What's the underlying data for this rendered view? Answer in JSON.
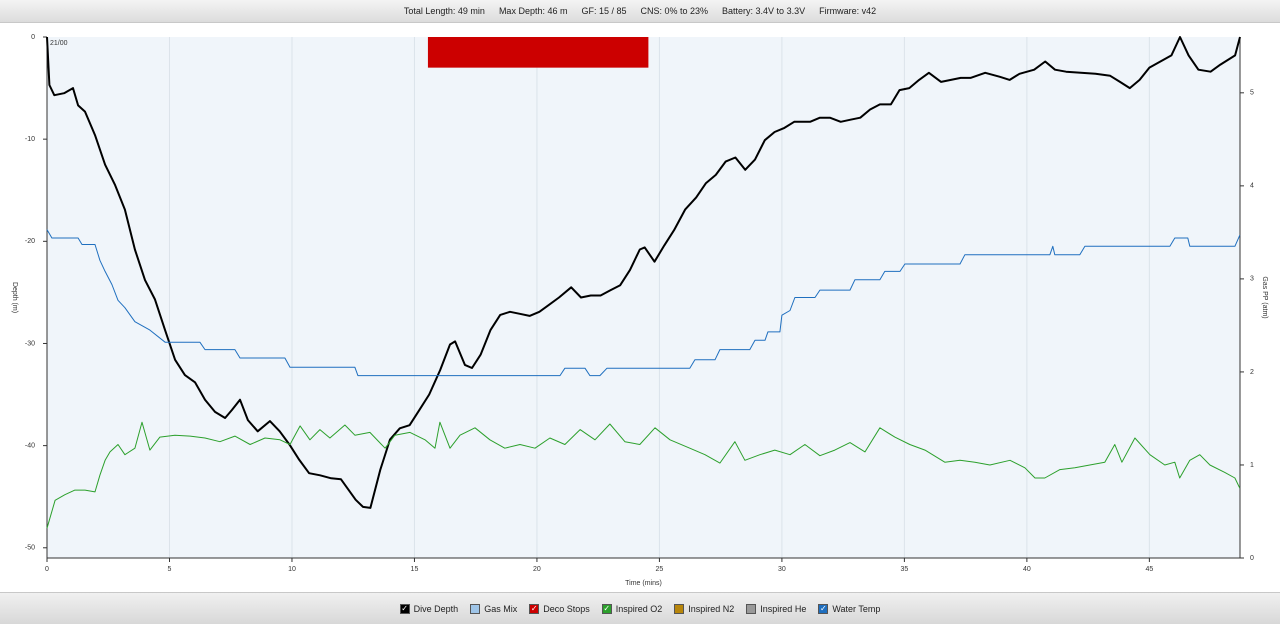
{
  "header": {
    "stats": [
      "Total Length: 49 min",
      "Max Depth: 46 m",
      "GF: 15 / 85",
      "CNS: 0% to 23%",
      "Battery: 3.4V to 3.3V",
      "Firmware: v42"
    ]
  },
  "chart_data": {
    "type": "line",
    "x_label": "Time (mins)",
    "y_label": "Depth (m)",
    "y2_label": "Gas PP (atm)",
    "corner_label": "21/00",
    "xlim": [
      0,
      48.7
    ],
    "xticks": [
      0,
      5,
      10,
      15,
      20,
      25,
      30,
      35,
      40,
      45
    ],
    "ylim": [
      -51,
      0
    ],
    "yticks": [
      0,
      -10,
      -20,
      -30,
      -40,
      -50
    ],
    "y2lim": [
      0,
      5.6
    ],
    "y2ticks": [
      0,
      1,
      2,
      3,
      4,
      5
    ],
    "grid": true,
    "legend": [
      {
        "name": "Dive Depth",
        "color": "#000000",
        "checked": true
      },
      {
        "name": "Gas Mix",
        "color": "#9fc5e8",
        "checked": false
      },
      {
        "name": "Deco Stops",
        "color": "#cc0000",
        "checked": true
      },
      {
        "name": "Inspired O2",
        "color": "#2ca02c",
        "checked": true
      },
      {
        "name": "Inspired N2",
        "color": "#b8860b",
        "checked": false
      },
      {
        "name": "Inspired He",
        "color": "#999999",
        "checked": false
      },
      {
        "name": "Water Temp",
        "color": "#1f6fbf",
        "checked": true
      }
    ],
    "deco_stops": [
      {
        "start": 15.55,
        "end": 24.55,
        "depth": -3,
        "legend": 2
      }
    ],
    "series": [
      {
        "legend": 0,
        "color": "#000000",
        "width": 2,
        "axis": "y",
        "x": [
          0,
          0.1,
          0.3,
          0.7,
          1.06,
          1.27,
          1.55,
          1.96,
          2.37,
          2.78,
          3.18,
          3.59,
          4.0,
          4.41,
          4.82,
          5.23,
          5.63,
          6.04,
          6.45,
          6.86,
          7.27,
          7.55,
          7.88,
          8.2,
          8.6,
          9.1,
          9.5,
          9.9,
          10.3,
          10.7,
          11.15,
          11.6,
          12.0,
          12.6,
          12.9,
          13.2,
          13.6,
          14.0,
          14.4,
          14.8,
          15.2,
          15.6,
          16.05,
          16.45,
          16.66,
          17.06,
          17.35,
          17.7,
          18.1,
          18.5,
          18.9,
          19.3,
          19.7,
          20.1,
          20.5,
          20.9,
          21.4,
          21.8,
          22.2,
          22.6,
          23.0,
          23.4,
          23.8,
          24.2,
          24.4,
          24.8,
          25.2,
          25.6,
          26.05,
          26.5,
          26.9,
          27.3,
          27.7,
          28.1,
          28.5,
          28.9,
          29.3,
          29.7,
          30.1,
          30.5,
          31.15,
          31.55,
          31.96,
          32.4,
          32.8,
          33.2,
          33.6,
          34.0,
          34.45,
          34.8,
          35.2,
          35.6,
          36.0,
          36.5,
          36.9,
          37.3,
          37.7,
          38.3,
          38.9,
          39.3,
          39.7,
          40.3,
          40.75,
          41.15,
          41.6,
          42.2,
          42.8,
          43.4,
          43.8,
          44.2,
          44.6,
          45.0,
          45.45,
          45.9,
          46.25,
          46.6,
          47.0,
          47.5,
          47.9,
          48.5,
          48.7
        ],
        "values": [
          0,
          -4.7,
          -5.7,
          -5.5,
          -5.0,
          -6.7,
          -7.3,
          -9.6,
          -12.5,
          -14.5,
          -16.9,
          -20.8,
          -23.8,
          -25.7,
          -28.7,
          -31.6,
          -33.1,
          -33.8,
          -35.5,
          -36.7,
          -37.3,
          -36.5,
          -35.5,
          -37.5,
          -38.6,
          -37.6,
          -38.6,
          -39.9,
          -41.4,
          -42.7,
          -42.9,
          -43.2,
          -43.3,
          -45.3,
          -46.0,
          -46.1,
          -42.4,
          -39.4,
          -38.3,
          -38.0,
          -36.5,
          -35.0,
          -32.6,
          -30.1,
          -29.8,
          -32.1,
          -32.4,
          -31.1,
          -28.7,
          -27.2,
          -26.9,
          -27.1,
          -27.3,
          -26.9,
          -26.2,
          -25.5,
          -24.5,
          -25.5,
          -25.3,
          -25.3,
          -24.8,
          -24.3,
          -22.8,
          -20.8,
          -20.6,
          -22.0,
          -20.4,
          -18.9,
          -16.9,
          -15.7,
          -14.3,
          -13.5,
          -12.2,
          -11.8,
          -13.0,
          -12.0,
          -10.1,
          -9.3,
          -8.9,
          -8.3,
          -8.3,
          -7.9,
          -7.9,
          -8.3,
          -8.1,
          -7.9,
          -7.1,
          -6.6,
          -6.6,
          -5.2,
          -5.0,
          -4.2,
          -3.5,
          -4.4,
          -4.2,
          -4.0,
          -4.0,
          -3.5,
          -3.9,
          -4.2,
          -3.6,
          -3.2,
          -2.4,
          -3.2,
          -3.4,
          -3.5,
          -3.6,
          -3.8,
          -4.4,
          -5.0,
          -4.2,
          -3.0,
          -2.4,
          -1.8,
          0,
          -1.8,
          -3.2,
          -3.4,
          -2.7,
          -1.8,
          0
        ]
      },
      {
        "legend": 6,
        "color": "#1f6fbf",
        "width": 1,
        "axis": "y2",
        "x": [
          0,
          0.2,
          1.27,
          1.43,
          1.96,
          2.16,
          2.37,
          2.65,
          2.9,
          3.18,
          3.59,
          4.2,
          4.82,
          6.24,
          6.45,
          7.67,
          7.88,
          9.71,
          9.92,
          12.57,
          12.69,
          20.94,
          21.14,
          21.96,
          22.16,
          22.57,
          22.86,
          26.24,
          26.45,
          27.27,
          27.47,
          28.69,
          28.9,
          29.31,
          29.43,
          29.92,
          30.0,
          30.33,
          30.53,
          31.35,
          31.55,
          32.78,
          32.98,
          34.0,
          34.2,
          34.82,
          35.02,
          37.27,
          37.47,
          40.94,
          41.06,
          41.14,
          42.16,
          42.37,
          45.84,
          46.04,
          46.57,
          46.65,
          48.49,
          48.69
        ],
        "values": [
          3.53,
          3.44,
          3.44,
          3.37,
          3.37,
          3.2,
          3.08,
          2.94,
          2.77,
          2.69,
          2.54,
          2.45,
          2.32,
          2.32,
          2.24,
          2.24,
          2.15,
          2.15,
          2.05,
          2.05,
          1.96,
          1.96,
          2.04,
          2.04,
          1.96,
          1.96,
          2.04,
          2.04,
          2.13,
          2.13,
          2.24,
          2.24,
          2.34,
          2.34,
          2.43,
          2.43,
          2.61,
          2.66,
          2.8,
          2.8,
          2.88,
          2.88,
          2.99,
          2.99,
          3.08,
          3.08,
          3.16,
          3.16,
          3.26,
          3.26,
          3.35,
          3.26,
          3.26,
          3.35,
          3.35,
          3.44,
          3.44,
          3.35,
          3.35,
          3.47
        ]
      },
      {
        "legend": 3,
        "color": "#2ca02c",
        "width": 1,
        "axis": "y2",
        "x": [
          0,
          0.33,
          0.73,
          1.14,
          1.55,
          1.96,
          2.16,
          2.37,
          2.57,
          2.9,
          3.18,
          3.59,
          3.88,
          4.2,
          4.61,
          5.22,
          5.84,
          6.45,
          7.06,
          7.67,
          8.29,
          8.9,
          9.51,
          9.92,
          10.33,
          10.73,
          11.14,
          11.55,
          12.16,
          12.57,
          13.18,
          13.8,
          14.2,
          14.82,
          15.43,
          15.84,
          16.04,
          16.45,
          16.86,
          17.47,
          18.08,
          18.69,
          19.31,
          19.92,
          20.53,
          21.14,
          21.76,
          22.37,
          22.98,
          23.59,
          24.2,
          24.82,
          25.43,
          26.24,
          26.86,
          27.47,
          28.08,
          28.49,
          29.1,
          29.71,
          30.33,
          30.94,
          31.55,
          32.16,
          32.78,
          33.39,
          34.0,
          34.61,
          35.22,
          35.84,
          36.65,
          37.27,
          37.88,
          38.49,
          39.31,
          39.92,
          40.33,
          40.73,
          41.35,
          41.96,
          42.57,
          43.18,
          43.59,
          43.88,
          44.41,
          45.02,
          45.63,
          46.04,
          46.24,
          46.65,
          47.06,
          47.47,
          48.08,
          48.49,
          48.69
        ],
        "values": [
          0.32,
          0.62,
          0.68,
          0.73,
          0.73,
          0.71,
          0.89,
          1.05,
          1.14,
          1.22,
          1.11,
          1.18,
          1.46,
          1.16,
          1.3,
          1.32,
          1.31,
          1.29,
          1.25,
          1.31,
          1.22,
          1.29,
          1.27,
          1.22,
          1.42,
          1.27,
          1.38,
          1.29,
          1.43,
          1.32,
          1.35,
          1.18,
          1.32,
          1.35,
          1.27,
          1.18,
          1.46,
          1.18,
          1.32,
          1.4,
          1.27,
          1.18,
          1.22,
          1.18,
          1.29,
          1.22,
          1.38,
          1.27,
          1.44,
          1.25,
          1.22,
          1.4,
          1.27,
          1.18,
          1.11,
          1.02,
          1.25,
          1.05,
          1.11,
          1.16,
          1.11,
          1.22,
          1.1,
          1.16,
          1.24,
          1.14,
          1.4,
          1.3,
          1.22,
          1.16,
          1.03,
          1.05,
          1.03,
          1.0,
          1.05,
          0.97,
          0.86,
          0.86,
          0.95,
          0.97,
          1.0,
          1.03,
          1.22,
          1.03,
          1.29,
          1.11,
          1.0,
          1.03,
          0.86,
          1.05,
          1.11,
          1.0,
          0.92,
          0.86,
          0.75
        ]
      }
    ]
  }
}
